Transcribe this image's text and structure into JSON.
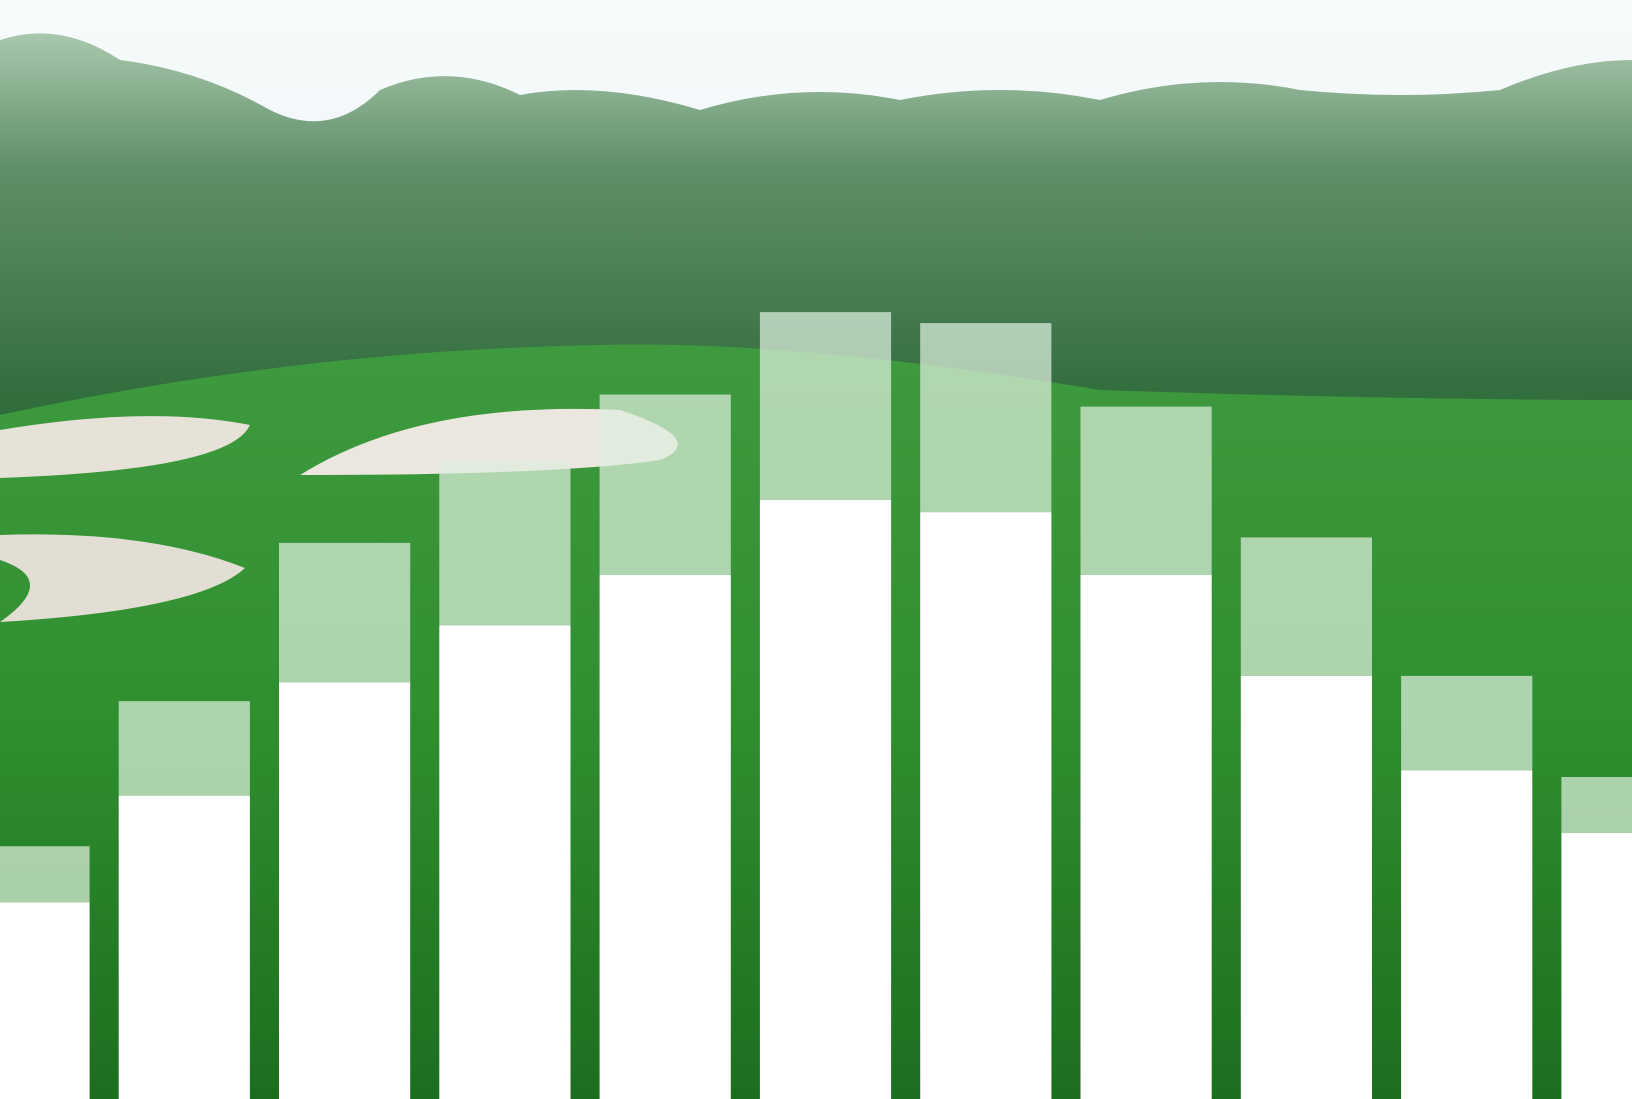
{
  "chart_data": {
    "type": "bar",
    "stacked": true,
    "categories": [
      null,
      null,
      null,
      null,
      null,
      null,
      null,
      null,
      null,
      null,
      null
    ],
    "series": [
      {
        "color": "#ffffff",
        "values": [
          17.9,
          27.6,
          37.9,
          43.1,
          47.7,
          54.5,
          53.4,
          47.7,
          38.5,
          29.9,
          24.2
        ]
      },
      {
        "color": "rgba(222,238,222,0.72)",
        "values": [
          5.1,
          8.6,
          12.7,
          14.9,
          16.4,
          17.1,
          17.2,
          15.3,
          12.6,
          8.6,
          5.1
        ]
      }
    ],
    "ylim": [
      0,
      100
    ]
  }
}
